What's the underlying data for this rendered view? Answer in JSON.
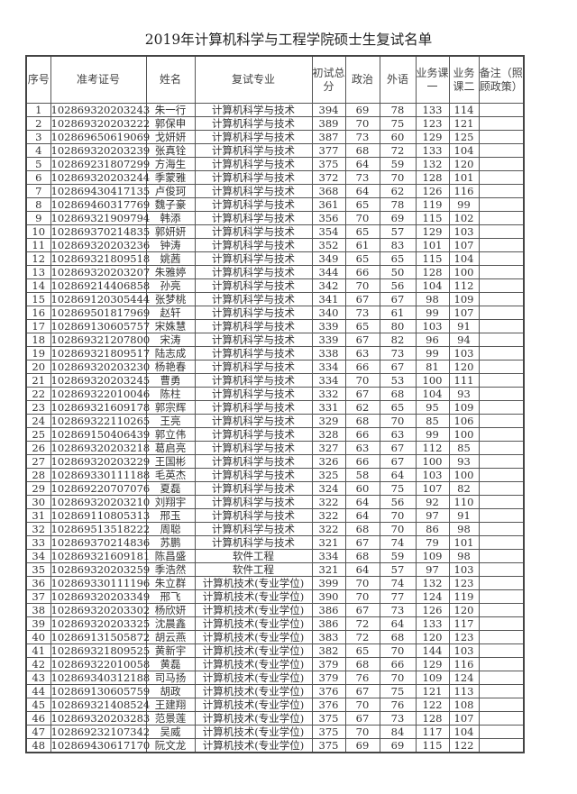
{
  "title": "2019年计算机科学与工程学院硕士生复试名单",
  "headers": [
    "序号",
    "准考证号",
    "姓名",
    "复试专业",
    "初试总分",
    "政治",
    "外语",
    "业务课一",
    "业务课二",
    "备注（照顾政策）"
  ],
  "rows": [
    [
      "1",
      "102869320203243",
      "朱一行",
      "计算机科学与技术",
      "394",
      "69",
      "78",
      "133",
      "114",
      ""
    ],
    [
      "2",
      "102869320203222",
      "郭保申",
      "计算机科学与技术",
      "389",
      "70",
      "75",
      "123",
      "121",
      ""
    ],
    [
      "3",
      "102869650619069",
      "戈妍妍",
      "计算机科学与技术",
      "387",
      "73",
      "60",
      "129",
      "125",
      ""
    ],
    [
      "4",
      "102869320203239",
      "张真铨",
      "计算机科学与技术",
      "377",
      "68",
      "72",
      "133",
      "104",
      ""
    ],
    [
      "5",
      "102869231807299",
      "方海生",
      "计算机科学与技术",
      "375",
      "64",
      "59",
      "132",
      "120",
      ""
    ],
    [
      "6",
      "102869320203244",
      "季蒙雅",
      "计算机科学与技术",
      "372",
      "73",
      "70",
      "128",
      "101",
      ""
    ],
    [
      "7",
      "102869430417135",
      "卢俊珂",
      "计算机科学与技术",
      "368",
      "64",
      "62",
      "126",
      "116",
      ""
    ],
    [
      "8",
      "102869460317769",
      "魏子豪",
      "计算机科学与技术",
      "361",
      "65",
      "78",
      "119",
      "99",
      ""
    ],
    [
      "9",
      "102869321909794",
      "韩添",
      "计算机科学与技术",
      "356",
      "70",
      "69",
      "115",
      "102",
      ""
    ],
    [
      "10",
      "102869370214835",
      "郭妍妍",
      "计算机科学与技术",
      "354",
      "65",
      "57",
      "129",
      "103",
      ""
    ],
    [
      "11",
      "102869320203236",
      "钟涛",
      "计算机科学与技术",
      "352",
      "61",
      "83",
      "101",
      "107",
      ""
    ],
    [
      "12",
      "102869321809518",
      "姚茜",
      "计算机科学与技术",
      "349",
      "65",
      "65",
      "115",
      "104",
      ""
    ],
    [
      "13",
      "102869320203207",
      "朱雅婷",
      "计算机科学与技术",
      "344",
      "66",
      "50",
      "128",
      "100",
      ""
    ],
    [
      "14",
      "102869214406858",
      "孙亮",
      "计算机科学与技术",
      "342",
      "70",
      "56",
      "104",
      "112",
      ""
    ],
    [
      "15",
      "102869120305444",
      "张梦桃",
      "计算机科学与技术",
      "341",
      "67",
      "67",
      "98",
      "109",
      ""
    ],
    [
      "16",
      "102869501817969",
      "赵轩",
      "计算机科学与技术",
      "340",
      "73",
      "61",
      "99",
      "107",
      ""
    ],
    [
      "17",
      "102869130605757",
      "宋姝慧",
      "计算机科学与技术",
      "339",
      "65",
      "80",
      "103",
      "91",
      ""
    ],
    [
      "18",
      "102869321207800",
      "宋涛",
      "计算机科学与技术",
      "339",
      "67",
      "82",
      "96",
      "94",
      ""
    ],
    [
      "19",
      "102869321809517",
      "陆志成",
      "计算机科学与技术",
      "338",
      "63",
      "73",
      "99",
      "103",
      ""
    ],
    [
      "20",
      "102869320203230",
      "杨艳春",
      "计算机科学与技术",
      "334",
      "66",
      "67",
      "81",
      "120",
      ""
    ],
    [
      "21",
      "102869320203245",
      "曹勇",
      "计算机科学与技术",
      "334",
      "70",
      "53",
      "100",
      "111",
      ""
    ],
    [
      "22",
      "102869322010046",
      "陈柱",
      "计算机科学与技术",
      "332",
      "67",
      "68",
      "104",
      "93",
      ""
    ],
    [
      "23",
      "102869321609178",
      "郭宗辉",
      "计算机科学与技术",
      "331",
      "62",
      "65",
      "95",
      "109",
      ""
    ],
    [
      "24",
      "102869322110265",
      "王亮",
      "计算机科学与技术",
      "329",
      "68",
      "70",
      "85",
      "106",
      ""
    ],
    [
      "25",
      "102869150406439",
      "郭立伟",
      "计算机科学与技术",
      "328",
      "66",
      "63",
      "99",
      "100",
      ""
    ],
    [
      "26",
      "102869320203218",
      "葛启亮",
      "计算机科学与技术",
      "327",
      "63",
      "67",
      "112",
      "85",
      ""
    ],
    [
      "27",
      "102869320203229",
      "王国彬",
      "计算机科学与技术",
      "326",
      "66",
      "67",
      "100",
      "93",
      ""
    ],
    [
      "28",
      "102869330111188",
      "毛英杰",
      "计算机科学与技术",
      "325",
      "58",
      "64",
      "103",
      "100",
      ""
    ],
    [
      "29",
      "102869220707076",
      "夏磊",
      "计算机科学与技术",
      "324",
      "60",
      "75",
      "107",
      "82",
      ""
    ],
    [
      "30",
      "102869320203210",
      "刘翔宇",
      "计算机科学与技术",
      "322",
      "64",
      "56",
      "92",
      "110",
      ""
    ],
    [
      "31",
      "102869110805313",
      "邢玉",
      "计算机科学与技术",
      "322",
      "64",
      "70",
      "97",
      "91",
      ""
    ],
    [
      "32",
      "102869513518222",
      "周聪",
      "计算机科学与技术",
      "322",
      "68",
      "70",
      "86",
      "98",
      ""
    ],
    [
      "33",
      "102869370214836",
      "苏鹏",
      "计算机科学与技术",
      "321",
      "67",
      "74",
      "79",
      "101",
      ""
    ],
    [
      "34",
      "102869321609181",
      "陈昌盛",
      "软件工程",
      "334",
      "68",
      "59",
      "109",
      "98",
      ""
    ],
    [
      "35",
      "102869320203259",
      "季浩然",
      "软件工程",
      "321",
      "64",
      "57",
      "97",
      "103",
      ""
    ],
    [
      "36",
      "102869330111196",
      "朱立群",
      "计算机技术(专业学位)",
      "399",
      "70",
      "74",
      "132",
      "123",
      ""
    ],
    [
      "37",
      "102869320203349",
      "邢飞",
      "计算机技术(专业学位)",
      "390",
      "70",
      "77",
      "124",
      "119",
      ""
    ],
    [
      "38",
      "102869320203302",
      "杨欣妍",
      "计算机技术(专业学位)",
      "386",
      "67",
      "73",
      "126",
      "120",
      ""
    ],
    [
      "39",
      "102869320203325",
      "沈晨鑫",
      "计算机技术(专业学位)",
      "386",
      "72",
      "64",
      "133",
      "117",
      ""
    ],
    [
      "40",
      "102869131505872",
      "胡云燕",
      "计算机技术(专业学位)",
      "383",
      "72",
      "68",
      "120",
      "123",
      ""
    ],
    [
      "41",
      "102869321809525",
      "黄新宇",
      "计算机技术(专业学位)",
      "382",
      "65",
      "70",
      "144",
      "103",
      ""
    ],
    [
      "42",
      "102869322010058",
      "黄磊",
      "计算机技术(专业学位)",
      "379",
      "68",
      "66",
      "129",
      "116",
      ""
    ],
    [
      "43",
      "102869340312188",
      "司马扬",
      "计算机技术(专业学位)",
      "379",
      "76",
      "70",
      "109",
      "124",
      ""
    ],
    [
      "44",
      "102869130605759",
      "胡政",
      "计算机技术(专业学位)",
      "376",
      "67",
      "75",
      "121",
      "113",
      ""
    ],
    [
      "45",
      "102869321408524",
      "王建翔",
      "计算机技术(专业学位)",
      "376",
      "70",
      "76",
      "122",
      "108",
      ""
    ],
    [
      "46",
      "102869320203283",
      "范景莲",
      "计算机技术(专业学位)",
      "375",
      "67",
      "73",
      "128",
      "107",
      ""
    ],
    [
      "47",
      "102869232107342",
      "吴威",
      "计算机技术(专业学位)",
      "375",
      "70",
      "84",
      "117",
      "104",
      ""
    ],
    [
      "48",
      "102869430617170",
      "阮文龙",
      "计算机技术(专业学位)",
      "375",
      "69",
      "69",
      "115",
      "122",
      ""
    ]
  ]
}
